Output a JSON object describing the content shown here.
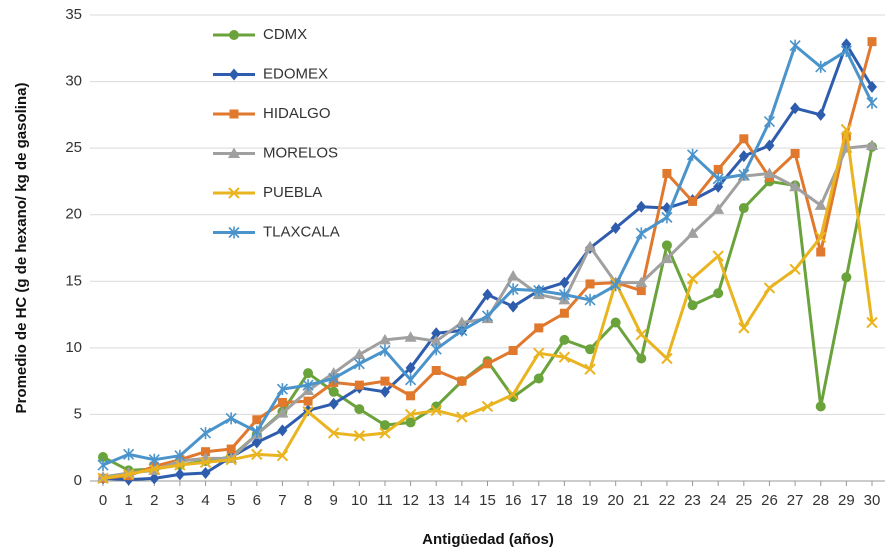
{
  "chart_data": {
    "type": "line",
    "ylabel": "Promedio de HC (g de hexano/ kg de gasolina)",
    "xlabel": "Antigüedad (años)",
    "x": [
      0,
      1,
      2,
      3,
      4,
      5,
      6,
      7,
      8,
      9,
      10,
      11,
      12,
      13,
      14,
      15,
      16,
      17,
      18,
      19,
      20,
      21,
      22,
      23,
      24,
      25,
      26,
      27,
      28,
      29,
      30
    ],
    "xlim": [
      0,
      30
    ],
    "xticks": [
      0,
      1,
      2,
      3,
      4,
      5,
      6,
      7,
      8,
      9,
      10,
      11,
      12,
      13,
      14,
      15,
      16,
      17,
      18,
      19,
      20,
      21,
      22,
      23,
      24,
      25,
      26,
      27,
      28,
      29,
      30
    ],
    "ylim": [
      0,
      35
    ],
    "yticks": [
      0,
      5,
      10,
      15,
      20,
      25,
      30,
      35
    ],
    "grid": true,
    "series": [
      {
        "name": "CDMX",
        "color": "#6aa33c",
        "marker": "circle",
        "values": [
          1.8,
          0.8,
          0.9,
          1.2,
          1.5,
          1.8,
          3.5,
          5.2,
          8.1,
          6.7,
          5.4,
          4.2,
          4.4,
          5.6,
          7.5,
          9.0,
          6.3,
          7.7,
          10.6,
          9.9,
          11.9,
          9.2,
          17.7,
          13.2,
          14.1,
          20.5,
          22.5,
          22.2,
          5.6,
          15.3,
          25.1
        ]
      },
      {
        "name": "EDOMEX",
        "color": "#2f5dae",
        "marker": "diamond",
        "values": [
          0.2,
          0.1,
          0.2,
          0.5,
          0.6,
          1.8,
          2.9,
          3.8,
          5.3,
          5.8,
          7.0,
          6.7,
          8.5,
          11.1,
          11.3,
          14.0,
          13.1,
          14.3,
          14.9,
          17.5,
          19.0,
          20.6,
          20.5,
          21.1,
          22.1,
          24.4,
          25.2,
          28.0,
          27.5,
          32.8,
          29.6
        ]
      },
      {
        "name": "HIDALGO",
        "color": "#e0782e",
        "marker": "square",
        "values": [
          0.2,
          0.4,
          1.1,
          1.6,
          2.2,
          2.4,
          4.6,
          5.9,
          6.0,
          7.4,
          7.2,
          7.5,
          6.4,
          8.3,
          7.5,
          8.8,
          9.8,
          11.5,
          12.6,
          14.8,
          14.9,
          14.3,
          23.1,
          21.0,
          23.4,
          25.7,
          22.8,
          24.6,
          17.2,
          25.9,
          33.0
        ]
      },
      {
        "name": "MORELOS",
        "color": "#a0a0a0",
        "marker": "triangle",
        "values": [
          0.3,
          0.6,
          0.8,
          1.5,
          1.7,
          1.7,
          3.5,
          5.1,
          6.8,
          8.1,
          9.5,
          10.6,
          10.8,
          10.5,
          11.9,
          12.2,
          15.4,
          14.0,
          13.6,
          17.6,
          14.9,
          14.9,
          16.7,
          18.6,
          20.4,
          22.9,
          23.1,
          22.1,
          20.7,
          25.0,
          25.2
        ]
      },
      {
        "name": "PUEBLA",
        "color": "#e9b41f",
        "marker": "x",
        "values": [
          0.2,
          0.5,
          0.9,
          1.2,
          1.4,
          1.6,
          2.0,
          1.9,
          5.2,
          3.6,
          3.4,
          3.6,
          5.0,
          5.3,
          4.8,
          5.6,
          6.5,
          9.6,
          9.3,
          8.4,
          14.9,
          11.0,
          9.2,
          15.2,
          16.9,
          11.5,
          14.5,
          15.9,
          18.3,
          26.4,
          11.9
        ]
      },
      {
        "name": "TLAXCALA",
        "color": "#4b94cb",
        "marker": "star",
        "values": [
          1.2,
          2.0,
          1.6,
          1.9,
          3.6,
          4.7,
          3.7,
          6.9,
          7.2,
          7.7,
          8.8,
          9.8,
          7.6,
          9.9,
          11.3,
          12.4,
          14.4,
          14.3,
          14.0,
          13.6,
          14.7,
          18.6,
          19.8,
          24.5,
          22.7,
          23.0,
          27.0,
          32.7,
          31.1,
          32.3,
          28.4
        ]
      }
    ]
  }
}
